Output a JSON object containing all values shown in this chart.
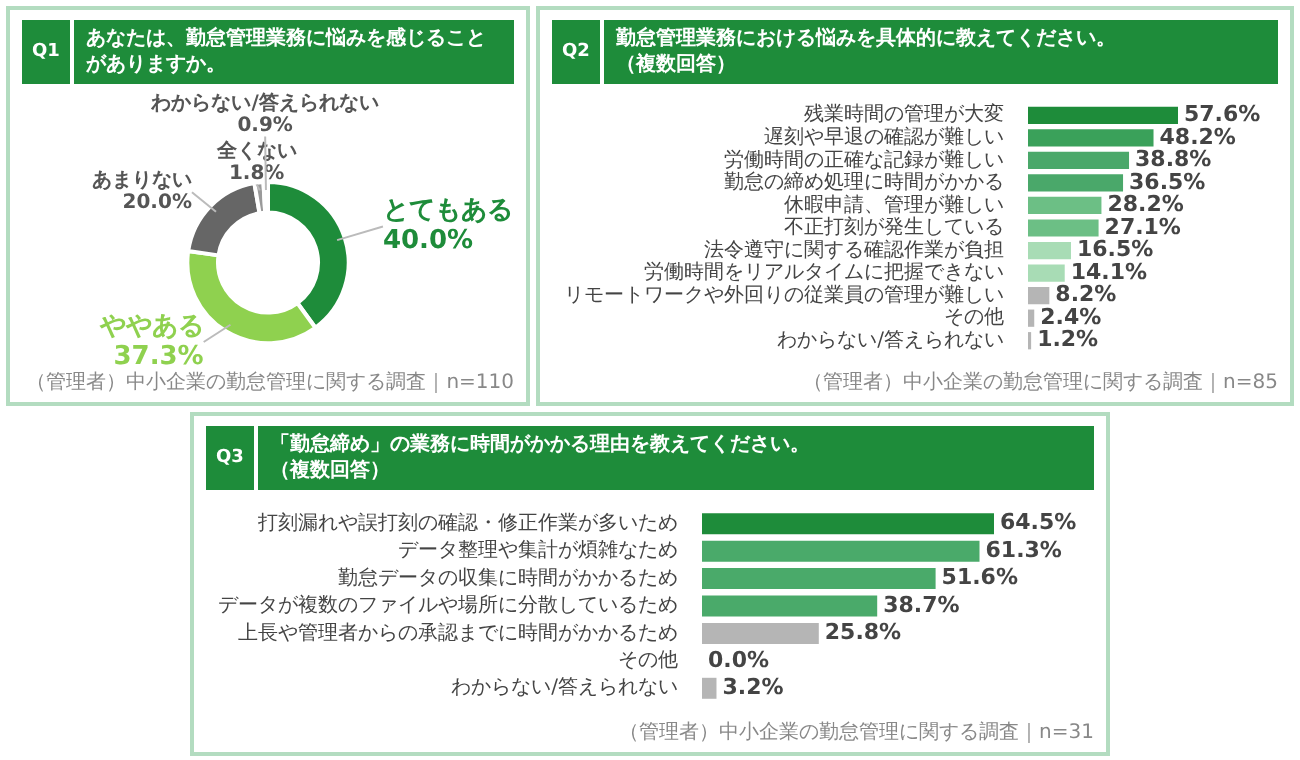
{
  "chart_data": [
    {
      "type": "donut",
      "title": "あなたは、勤怠管理業務に悩みを感じることがありますか。",
      "annotations": [
        "Q1",
        "（管理者）中小企業の勤怠管理に関する調査｜n=110"
      ],
      "categories": [
        "とてもある",
        "ややある",
        "あまりない",
        "全くない",
        "わからない/答えられない"
      ],
      "values": [
        40.0,
        37.3,
        20.0,
        1.8,
        0.9
      ],
      "colors": [
        "#1e8c3a",
        "#8fd14f",
        "#666666",
        "#9a9a9a",
        "#cccccc"
      ],
      "value_labels": [
        "40.0%",
        "37.3%",
        "20.0%",
        "1.8%",
        "0.9%"
      ]
    },
    {
      "type": "bar",
      "orientation": "horizontal",
      "title": "勤怠管理業務における悩みを具体的に教えてください。",
      "subtitle": "（複数回答）",
      "annotations": [
        "Q2",
        "（管理者）中小企業の勤怠管理に関する調査｜n=85"
      ],
      "categories": [
        "残業時間の管理が大変",
        "遅刻や早退の確認が難しい",
        "労働時間の正確な記録が難しい",
        "勤怠の締め処理に時間がかかる",
        "休暇申請、管理が難しい",
        "不正打刻が発生している",
        "法令遵守に関する確認作業が負担",
        "労働時間をリアルタイムに把握できない",
        "リモートワークや外回りの従業員の管理が難しい",
        "その他",
        "わからない/答えられない"
      ],
      "values": [
        57.6,
        48.2,
        38.8,
        36.5,
        28.2,
        27.1,
        16.5,
        14.1,
        8.2,
        2.4,
        1.2
      ],
      "colors": [
        "#1e8c3a",
        "#3aa15a",
        "#4aa86a",
        "#4aa86a",
        "#6cbf85",
        "#6cbf85",
        "#a8dcb5",
        "#a8dcb5",
        "#b5b5b5",
        "#b5b5b5",
        "#b5b5b5"
      ],
      "value_labels": [
        "57.6%",
        "48.2%",
        "38.8%",
        "36.5%",
        "28.2%",
        "27.1%",
        "16.5%",
        "14.1%",
        "8.2%",
        "2.4%",
        "1.2%"
      ]
    },
    {
      "type": "bar",
      "orientation": "horizontal",
      "title": "「勤怠締め」の業務に時間がかかる理由を教えてください。",
      "subtitle": "（複数回答）",
      "annotations": [
        "Q3",
        "（管理者）中小企業の勤怠管理に関する調査｜n=31"
      ],
      "categories": [
        "打刻漏れや誤打刻の確認・修正作業が多いため",
        "データ整理や集計が煩雑なため",
        "勤怠データの収集に時間がかかるため",
        "データが複数のファイルや場所に分散しているため",
        "上長や管理者からの承認までに時間がかかるため",
        "その他",
        "わからない/答えられない"
      ],
      "values": [
        64.5,
        61.3,
        51.6,
        38.7,
        25.8,
        0.0,
        3.2
      ],
      "colors": [
        "#1e8c3a",
        "#4aaa6a",
        "#4aaa6a",
        "#4aaa6a",
        "#b5b5b5",
        "#b5b5b5",
        "#b5b5b5"
      ],
      "value_labels": [
        "64.5%",
        "61.3%",
        "51.6%",
        "38.7%",
        "25.8%",
        "0.0%",
        "3.2%"
      ]
    }
  ]
}
